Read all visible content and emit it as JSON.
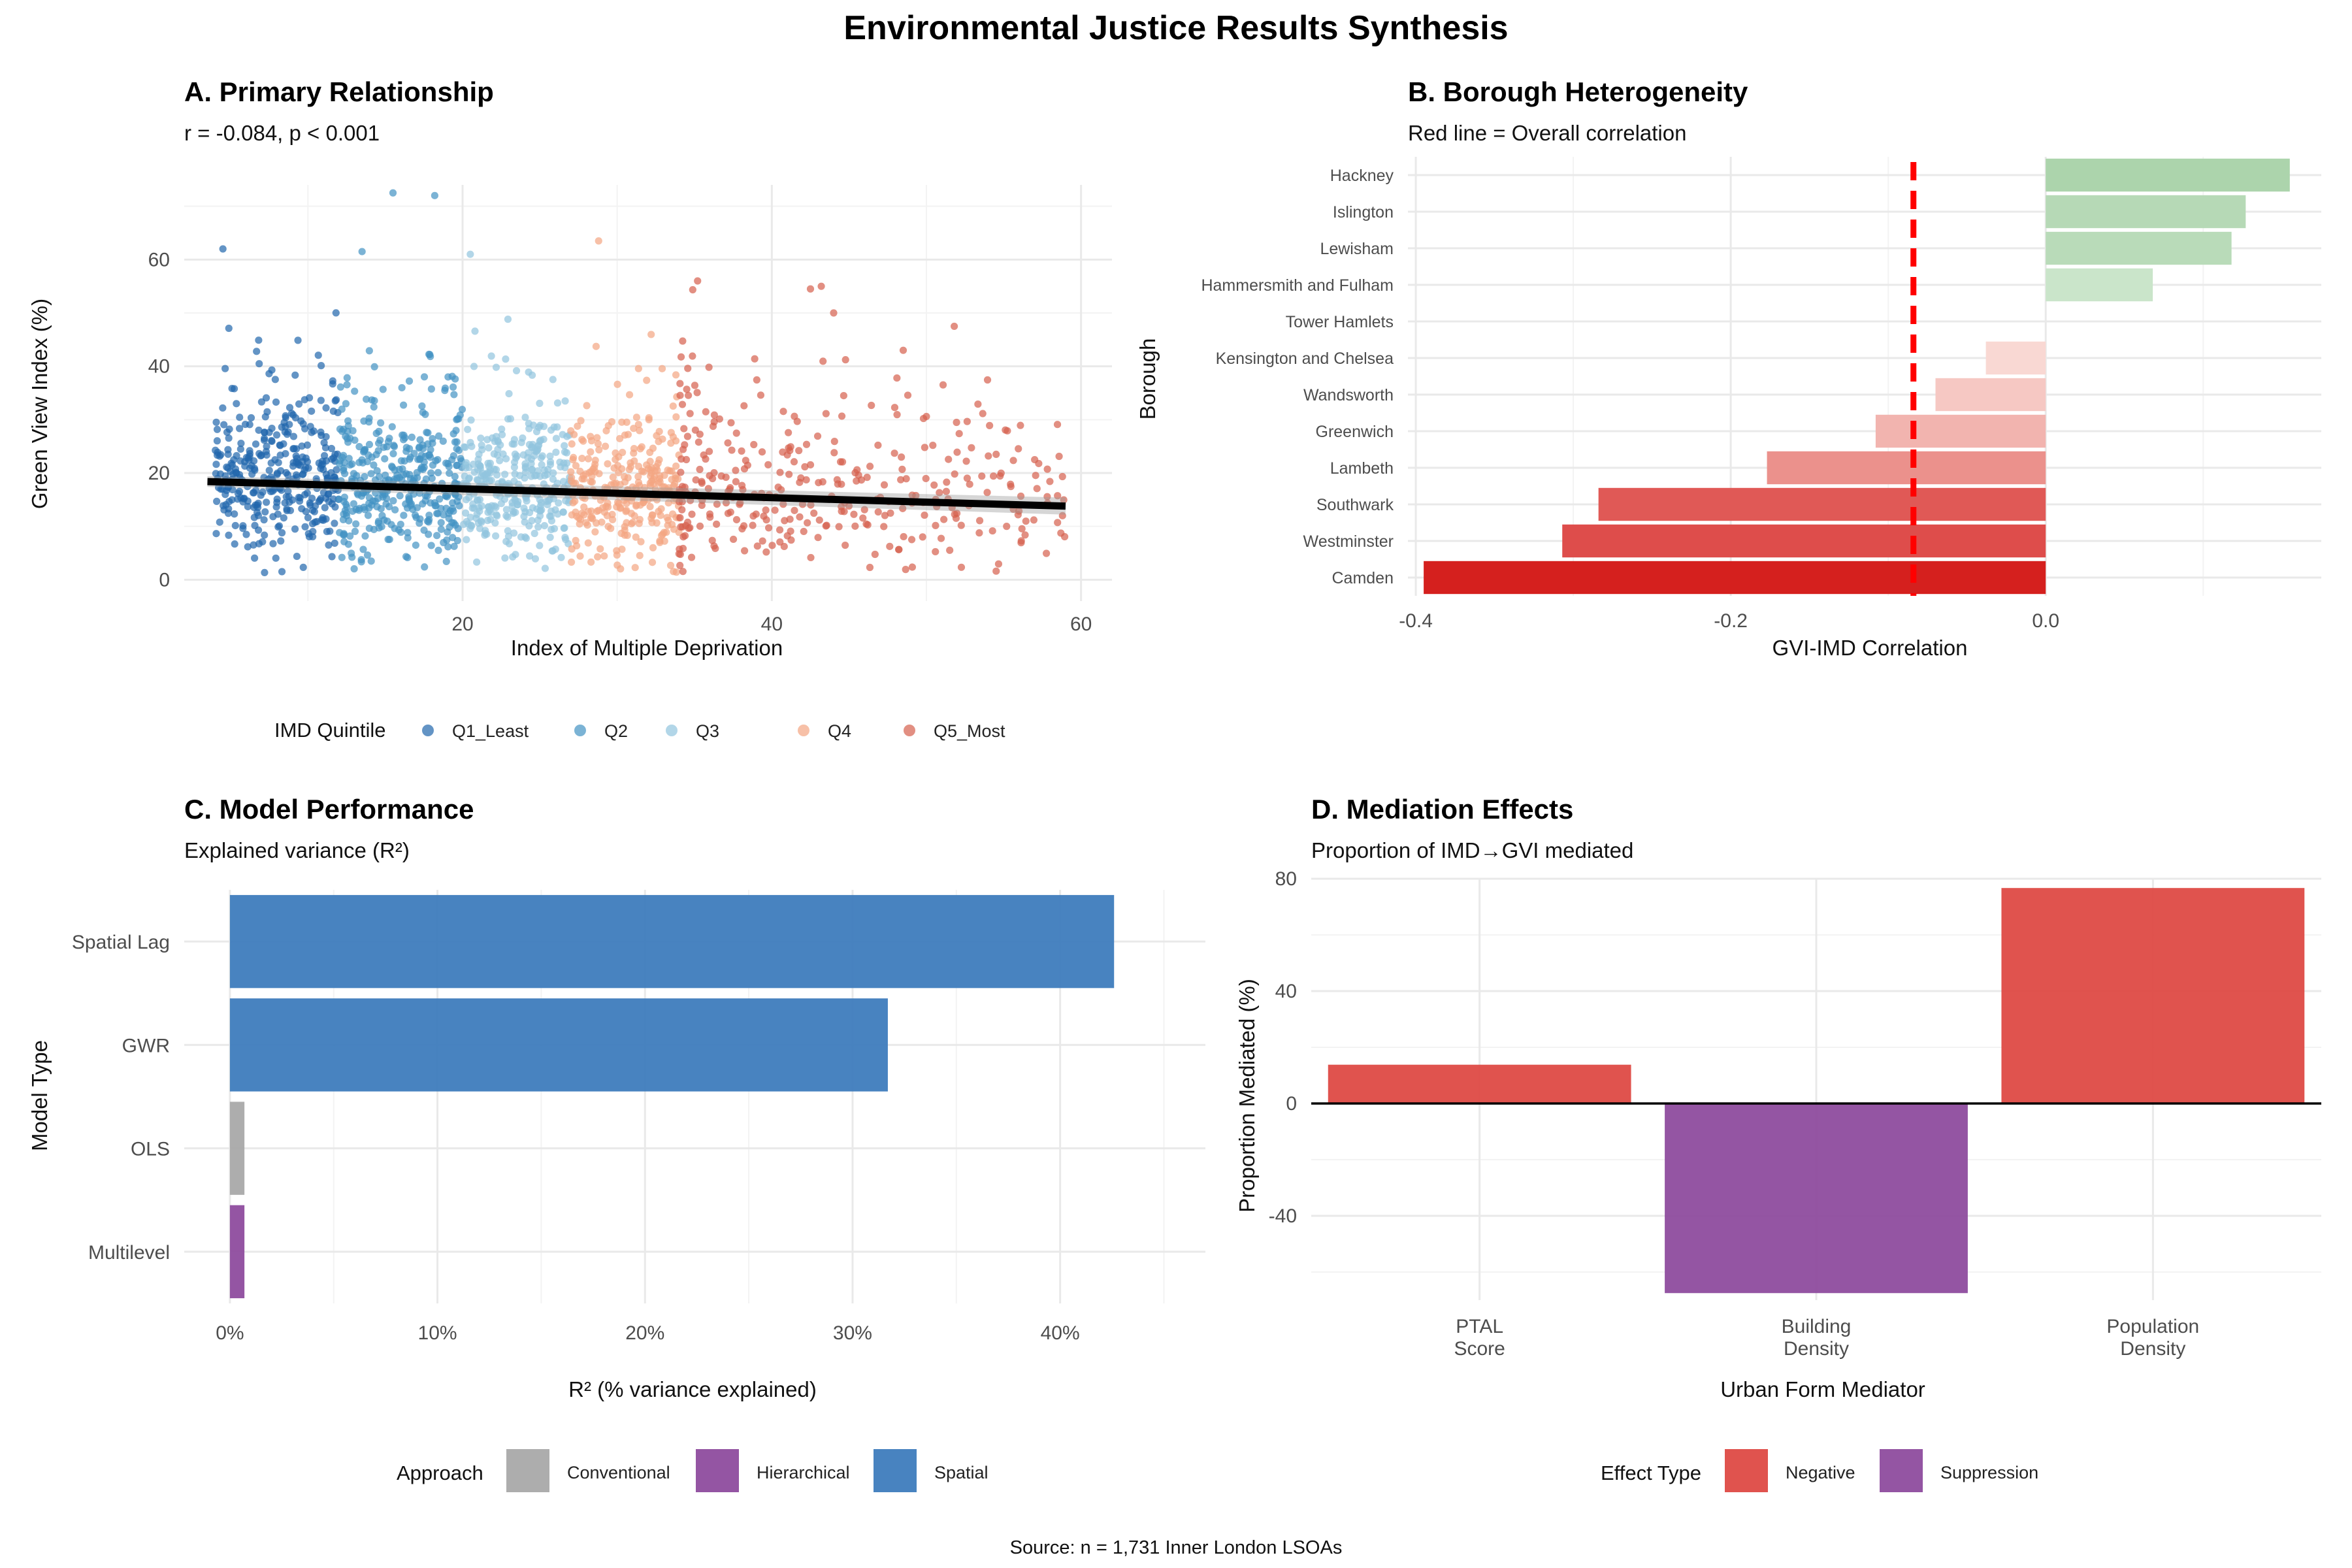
{
  "main_title": "Environmental Justice Results Synthesis",
  "source": "Source: n = 1,731 Inner London LSOAs",
  "colors": {
    "q1": "#2166AC",
    "q2": "#4393C3",
    "q3": "#92C5DE",
    "q4": "#F4A582",
    "q5": "#D6604D",
    "conventional": "#A9A9A9",
    "hierarchical": "#8E4C9E",
    "spatial": "#3E7CBD",
    "negative": "#DE4A44",
    "suppression": "#8E4C9E",
    "refline": "#FF0000"
  },
  "chart_data": [
    {
      "type": "scatter",
      "panel": "A",
      "title": "A. Primary Relationship",
      "subtitle": "r = -0.084, p < 0.001",
      "xlabel": "Index of Multiple Deprivation",
      "ylabel": "Green View Index (%)",
      "xlim": [
        2,
        62
      ],
      "ylim": [
        -4,
        74
      ],
      "xticks": [
        20,
        40,
        60
      ],
      "yticks": [
        0,
        20,
        40,
        60
      ],
      "legend_title": "IMD Quintile",
      "legend_position": "bottom",
      "series": [
        {
          "name": "Q1_Least",
          "x_range": [
            4,
            12
          ],
          "color_key": "q1"
        },
        {
          "name": "Q2",
          "x_range": [
            12,
            20
          ],
          "color_key": "q2"
        },
        {
          "name": "Q3",
          "x_range": [
            20,
            27
          ],
          "color_key": "q3"
        },
        {
          "name": "Q4",
          "x_range": [
            27,
            34
          ],
          "color_key": "q4"
        },
        {
          "name": "Q5_Most",
          "x_range": [
            34,
            59
          ],
          "color_key": "q5"
        }
      ],
      "outliers": [
        [
          15.5,
          72.5
        ],
        [
          18.2,
          72
        ],
        [
          28.8,
          63.5
        ],
        [
          4.5,
          62
        ],
        [
          13.5,
          61.5
        ],
        [
          20.5,
          61
        ],
        [
          35.2,
          56
        ],
        [
          42.5,
          54.5
        ],
        [
          43.2,
          55
        ],
        [
          51.8,
          47.5
        ],
        [
          48.5,
          43
        ],
        [
          44,
          50
        ],
        [
          58.8,
          12
        ],
        [
          57,
          22.5
        ]
      ],
      "trend": {
        "x": [
          3.5,
          59
        ],
        "y": [
          18.4,
          13.8
        ]
      },
      "n_points": 1731
    },
    {
      "type": "bar",
      "orientation": "horizontal",
      "panel": "B",
      "title": "B. Borough Heterogeneity",
      "subtitle": "Red line = Overall correlation",
      "xlabel": "GVI-IMD Correlation",
      "ylabel": "Borough",
      "xlim": [
        -0.405,
        0.175
      ],
      "xticks": [
        -0.4,
        -0.2,
        0.0
      ],
      "xtick_labels": [
        "-0.4",
        "-0.2",
        "0.0"
      ],
      "reference_line": -0.084,
      "categories": [
        "Hackney",
        "Islington",
        "Lewisham",
        "Hammersmith and Fulham",
        "Tower Hamlets",
        "Kensington and Chelsea",
        "Wandsworth",
        "Greenwich",
        "Lambeth",
        "Southwark",
        "Westminster",
        "Camden"
      ],
      "values": [
        0.155,
        0.127,
        0.118,
        0.068,
        0.0,
        -0.038,
        -0.07,
        -0.108,
        -0.177,
        -0.284,
        -0.307,
        -0.395
      ]
    },
    {
      "type": "bar",
      "orientation": "horizontal",
      "panel": "C",
      "title": "C. Model Performance",
      "subtitle": "Explained variance (R²)",
      "xlabel": "R² (% variance explained)",
      "ylabel": "Model Type",
      "xlim": [
        -0.022,
        0.47
      ],
      "xticks": [
        0,
        0.1,
        0.2,
        0.3,
        0.4
      ],
      "xtick_labels": [
        "0%",
        "10%",
        "20%",
        "30%",
        "40%"
      ],
      "categories": [
        "Spatial Lag",
        "GWR",
        "OLS",
        "Multilevel"
      ],
      "values": [
        0.426,
        0.317,
        0.007,
        0.007
      ],
      "groups": [
        "Spatial",
        "Spatial",
        "Conventional",
        "Hierarchical"
      ],
      "legend_title": "Approach",
      "legend": [
        {
          "name": "Conventional",
          "color_key": "conventional"
        },
        {
          "name": "Hierarchical",
          "color_key": "hierarchical"
        },
        {
          "name": "Spatial",
          "color_key": "spatial"
        }
      ]
    },
    {
      "type": "bar",
      "orientation": "vertical",
      "panel": "D",
      "title": "D. Mediation Effects",
      "subtitle": "Proportion of IMD→GVI mediated",
      "xlabel": "Urban Form Mediator",
      "ylabel": "Proportion Mediated (%)",
      "ylim": [
        -70,
        80
      ],
      "yticks": [
        -40,
        0,
        40,
        80
      ],
      "categories": [
        [
          "PTAL",
          "Score"
        ],
        [
          "Building",
          "Density"
        ],
        [
          "Population",
          "Density"
        ]
      ],
      "values": [
        13.8,
        -67.5,
        76.7
      ],
      "groups": [
        "Negative",
        "Suppression",
        "Negative"
      ],
      "legend_title": "Effect Type",
      "legend": [
        {
          "name": "Negative",
          "color_key": "negative"
        },
        {
          "name": "Suppression",
          "color_key": "suppression"
        }
      ]
    }
  ]
}
